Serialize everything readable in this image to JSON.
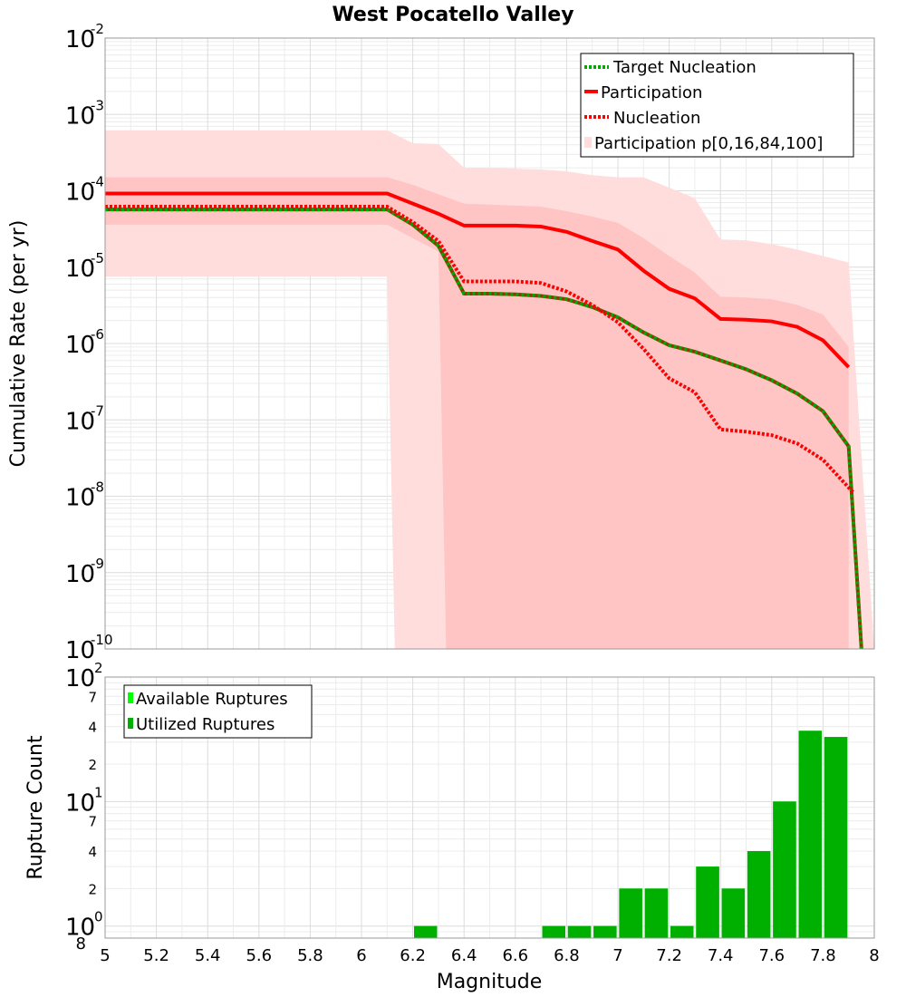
{
  "chart_data": [
    {
      "type": "line",
      "title": "West Pocatello Valley",
      "xlabel": "",
      "ylabel": "Cumulative Rate (per yr)",
      "xlim": [
        5,
        8
      ],
      "ylim": [
        1e-10,
        0.01
      ],
      "yscale": "log",
      "grid": true,
      "legend_position": "top-right",
      "x_ticks": [
        "5",
        "5.2",
        "5.4",
        "5.6",
        "5.8",
        "6",
        "6.2",
        "6.4",
        "6.6",
        "6.8",
        "7",
        "7.2",
        "7.4",
        "7.6",
        "7.8",
        "8"
      ],
      "y_ticks": [
        {
          "base": "10",
          "exp": "-2"
        },
        {
          "base": "10",
          "exp": "-3"
        },
        {
          "base": "10",
          "exp": "-4"
        },
        {
          "base": "10",
          "exp": "-5"
        },
        {
          "base": "10",
          "exp": "-6"
        },
        {
          "base": "10",
          "exp": "-7"
        },
        {
          "base": "10",
          "exp": "-8"
        },
        {
          "base": "10",
          "exp": "-9"
        },
        {
          "base": "10",
          "exp": "-10"
        }
      ],
      "series": [
        {
          "name": "Target Nucleation",
          "style": "dotted",
          "colors": [
            "#00aa00",
            "#8b3a00"
          ],
          "x": [
            5.0,
            6.1,
            6.2,
            6.3,
            6.4,
            6.5,
            6.6,
            6.7,
            6.8,
            6.9,
            7.0,
            7.1,
            7.2,
            7.3,
            7.4,
            7.5,
            7.6,
            7.7,
            7.8,
            7.9,
            7.95
          ],
          "y": [
            5.7e-05,
            5.7e-05,
            3.6e-05,
            1.9e-05,
            4.5e-06,
            4.5e-06,
            4.4e-06,
            4.2e-06,
            3.8e-06,
            3e-06,
            2.2e-06,
            1.4e-06,
            9.5e-07,
            7.8e-07,
            6e-07,
            4.6e-07,
            3.3e-07,
            2.2e-07,
            1.3e-07,
            4.5e-08,
            1e-10
          ]
        },
        {
          "name": "Participation",
          "style": "solid",
          "color": "#ff0000",
          "x": [
            5.0,
            6.1,
            6.2,
            6.3,
            6.4,
            6.5,
            6.6,
            6.7,
            6.8,
            6.9,
            7.0,
            7.1,
            7.2,
            7.3,
            7.4,
            7.5,
            7.6,
            7.7,
            7.8,
            7.9
          ],
          "y": [
            9.2e-05,
            9.2e-05,
            6.8e-05,
            5e-05,
            3.5e-05,
            3.5e-05,
            3.5e-05,
            3.4e-05,
            2.9e-05,
            2.2e-05,
            1.7e-05,
            9e-06,
            5.2e-06,
            3.9e-06,
            2.1e-06,
            2.05e-06,
            1.95e-06,
            1.65e-06,
            1.1e-06,
            4.9e-07
          ]
        },
        {
          "name": "Nucleation",
          "style": "dotted",
          "color": "#ff0000",
          "x": [
            5.0,
            6.1,
            6.2,
            6.3,
            6.4,
            6.5,
            6.6,
            6.7,
            6.8,
            6.9,
            7.0,
            7.1,
            7.2,
            7.3,
            7.4,
            7.5,
            7.6,
            7.7,
            7.8,
            7.9,
            7.92
          ],
          "y": [
            6.2e-05,
            6.2e-05,
            3.9e-05,
            2.2e-05,
            6.5e-06,
            6.5e-06,
            6.5e-06,
            6.2e-06,
            4.8e-06,
            3.2e-06,
            1.9e-06,
            8.5e-07,
            3.5e-07,
            2.3e-07,
            7.5e-08,
            7e-08,
            6.3e-08,
            4.9e-08,
            3e-08,
            1.3e-08,
            1.1e-08
          ]
        }
      ],
      "band_series": {
        "name": "Participation p[0,16,84,100]",
        "outer_color": "#ffdddd",
        "inner_color": "#ffc4c4",
        "outer_upper": {
          "x": [
            5.0,
            6.1,
            6.2,
            6.3,
            6.4,
            6.5,
            6.6,
            6.7,
            6.8,
            6.9,
            7.0,
            7.1,
            7.2,
            7.3,
            7.4,
            7.5,
            7.6,
            7.7,
            7.8,
            7.9
          ],
          "y": [
            0.00062,
            0.00062,
            0.00042,
            0.00041,
            0.0002,
            0.0002,
            0.000195,
            0.00019,
            0.00018,
            0.00016,
            0.00015,
            0.00015,
            0.00011,
            8e-05,
            2.3e-05,
            2.25e-05,
            2e-05,
            1.7e-05,
            1.4e-05,
            1.15e-05
          ]
        },
        "inner_upper": {
          "x": [
            5.0,
            6.1,
            6.2,
            6.3,
            6.4,
            6.5,
            6.6,
            6.7,
            6.8,
            6.9,
            7.0,
            7.1,
            7.2,
            7.3,
            7.4,
            7.5,
            7.6,
            7.7,
            7.8,
            7.9
          ],
          "y": [
            0.00015,
            0.00015,
            0.00012,
            9e-05,
            6.8e-05,
            6.6e-05,
            6.4e-05,
            6.2e-05,
            5.4e-05,
            4.6e-05,
            3.8e-05,
            2.4e-05,
            1.4e-05,
            8.5e-06,
            4.1e-06,
            4e-06,
            3.8e-06,
            3.2e-06,
            2.4e-06,
            9e-07
          ]
        },
        "inner_lower": {
          "x": [
            5.0,
            6.1,
            6.2,
            6.3,
            6.33,
            7.9
          ],
          "y": [
            3.6e-05,
            3.6e-05,
            2.4e-05,
            1.6e-05,
            1e-10,
            1e-10
          ]
        },
        "outer_lower": {
          "x": [
            5.0,
            6.1,
            6.13,
            8.0
          ],
          "y": [
            7.5e-06,
            7.5e-06,
            1e-10,
            1e-10
          ]
        }
      }
    },
    {
      "type": "bar",
      "xlabel": "Magnitude",
      "ylabel": "Rupture Count",
      "xlim": [
        5,
        8
      ],
      "ylim": [
        0.8,
        100
      ],
      "yscale": "log",
      "grid": true,
      "legend_position": "top-left",
      "x_ticks": [
        "5",
        "5.2",
        "5.4",
        "5.6",
        "5.8",
        "6",
        "6.2",
        "6.4",
        "6.6",
        "6.8",
        "7",
        "7.2",
        "7.4",
        "7.6",
        "7.8",
        "8"
      ],
      "y_ticks": [
        {
          "base": "10",
          "exp": "2"
        },
        {
          "base": "10",
          "exp": "1"
        },
        {
          "base": "10",
          "exp": "0"
        }
      ],
      "y_minor_labels": [
        {
          "label": "7",
          "value": 70
        },
        {
          "label": "4",
          "value": 40
        },
        {
          "label": "2",
          "value": 20
        },
        {
          "label": "7",
          "value": 7
        },
        {
          "label": "4",
          "value": 4
        },
        {
          "label": "2",
          "value": 2
        },
        {
          "label": "8",
          "value": 0.8
        }
      ],
      "bar_width": 0.09,
      "series": [
        {
          "name": "Available Ruptures",
          "color": "#00ff00",
          "x": [
            6.25,
            6.75,
            6.85,
            6.95,
            7.05,
            7.15,
            7.25,
            7.35,
            7.45,
            7.55,
            7.65,
            7.75,
            7.85
          ],
          "values": [
            1,
            1,
            1,
            1,
            2,
            2,
            1,
            3,
            2,
            4,
            10,
            37,
            33
          ]
        },
        {
          "name": "Utilized Ruptures",
          "color": "#00b000",
          "x": [
            6.25,
            6.75,
            6.85,
            6.95,
            7.05,
            7.15,
            7.25,
            7.35,
            7.45,
            7.55,
            7.65,
            7.75,
            7.85
          ],
          "values": [
            1,
            1,
            1,
            1,
            2,
            2,
            1,
            3,
            2,
            4,
            10,
            37,
            33
          ]
        }
      ]
    }
  ]
}
